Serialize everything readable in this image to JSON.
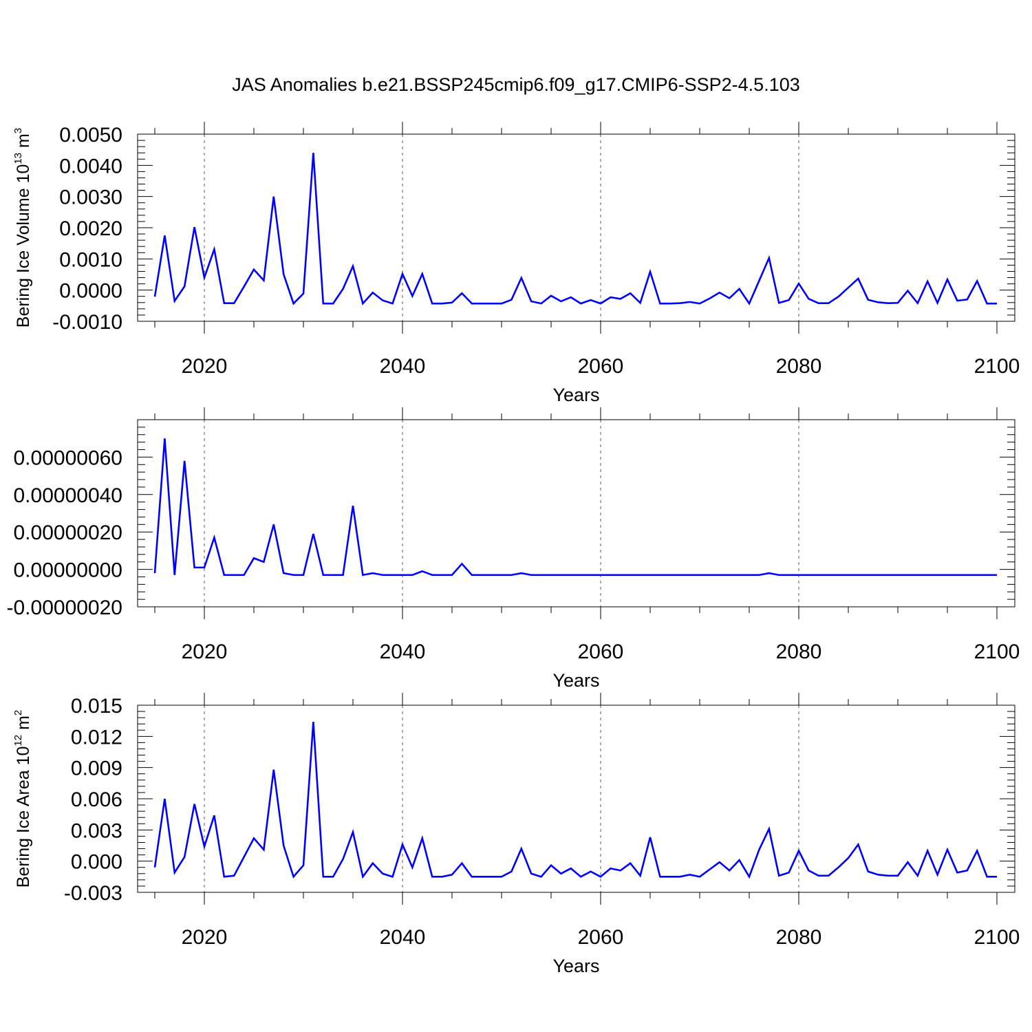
{
  "title": "JAS Anomalies b.e21.BSSP245cmip6.f09_g17.CMIP6-SSP2-4.5.103",
  "colors": {
    "line": "#0000ff",
    "axis": "#000000",
    "grid": "#555555"
  },
  "chart_data": [
    {
      "type": "line",
      "ylabel": {
        "text": "Bering Ice Volume 10",
        "sup": "13",
        "unit": " m",
        "unit_sup": "3"
      },
      "xlabel": "Years",
      "xlim": [
        2015,
        2100
      ],
      "ylim": [
        -0.001,
        0.005
      ],
      "x_ticks": [
        "2020",
        "2040",
        "2060",
        "2080",
        "2100"
      ],
      "y_ticks": [
        {
          "value": 0.005,
          "label": "0.0050"
        },
        {
          "value": 0.004,
          "label": "0.0040"
        },
        {
          "value": 0.003,
          "label": "0.0030"
        },
        {
          "value": 0.002,
          "label": "0.0020"
        },
        {
          "value": 0.001,
          "label": "0.0010"
        },
        {
          "value": 0.0,
          "label": "0.0000"
        },
        {
          "value": -0.001,
          "label": "-0.0010"
        }
      ],
      "grid": "vertical dashed at major ticks",
      "series": [
        {
          "x": [
            2015,
            2016,
            2017,
            2018,
            2019,
            2020,
            2021,
            2022,
            2023,
            2024,
            2025,
            2026,
            2027,
            2028,
            2029,
            2030,
            2031,
            2032,
            2033,
            2034,
            2035,
            2036,
            2037,
            2038,
            2039,
            2040,
            2041,
            2042,
            2043,
            2044,
            2045,
            2046,
            2047,
            2048,
            2049,
            2050,
            2051,
            2052,
            2053,
            2054,
            2055,
            2056,
            2057,
            2058,
            2059,
            2060,
            2061,
            2062,
            2063,
            2064,
            2065,
            2066,
            2067,
            2068,
            2069,
            2070,
            2071,
            2072,
            2073,
            2074,
            2075,
            2076,
            2077,
            2078,
            2079,
            2080,
            2081,
            2082,
            2083,
            2084,
            2085,
            2086,
            2087,
            2088,
            2089,
            2090,
            2091,
            2092,
            2093,
            2094,
            2095,
            2096,
            2097,
            2098,
            2099,
            2100
          ],
          "y": [
            -0.00021,
            0.00175,
            -0.00035,
            0.00012,
            0.00202,
            0.0004,
            0.00131,
            -0.00042,
            -0.00042,
            0.00011,
            0.00066,
            0.00031,
            0.003,
            0.00051,
            -0.00043,
            -0.00011,
            0.0044,
            -0.00043,
            -0.00043,
            4e-05,
            0.00077,
            -0.00043,
            -8e-05,
            -0.00033,
            -0.00043,
            0.00052,
            -0.00019,
            0.00052,
            -0.00043,
            -0.00043,
            -0.0004,
            -0.0001,
            -0.00043,
            -0.00043,
            -0.00043,
            -0.00043,
            -0.00031,
            0.00039,
            -0.00036,
            -0.00043,
            -0.00018,
            -0.00036,
            -0.00023,
            -0.00043,
            -0.00032,
            -0.00043,
            -0.00023,
            -0.00028,
            -0.0001,
            -0.00041,
            0.00059,
            -0.00043,
            -0.00043,
            -0.00042,
            -0.00038,
            -0.00043,
            -0.00027,
            -8e-05,
            -0.00026,
            4e-05,
            -0.00043,
            0.0003,
            0.00103,
            -0.00041,
            -0.00032,
            0.00021,
            -0.00028,
            -0.00042,
            -0.00042,
            -0.00021,
            8e-05,
            0.00037,
            -0.00031,
            -0.00039,
            -0.00042,
            -0.00041,
            -2e-05,
            -0.00042,
            0.00028,
            -0.00041,
            0.00034,
            -0.00034,
            -0.0003,
            0.00029,
            -0.00043,
            -0.00043
          ]
        }
      ]
    },
    {
      "type": "line",
      "ylabel": {
        "text": "",
        "sup": "",
        "unit": "",
        "unit_sup": ""
      },
      "xlabel": "Years",
      "xlim": [
        2015,
        2100
      ],
      "ylim": [
        -2e-07,
        8e-07
      ],
      "x_ticks": [
        "2020",
        "2040",
        "2060",
        "2080",
        "2100"
      ],
      "y_ticks": [
        {
          "value": 6e-07,
          "label": "0.00000060"
        },
        {
          "value": 4e-07,
          "label": "0.00000040"
        },
        {
          "value": 2e-07,
          "label": "0.00000020"
        },
        {
          "value": 0.0,
          "label": "0.00000000"
        },
        {
          "value": -2e-07,
          "label": "-0.00000020"
        }
      ],
      "grid": "vertical dashed at major ticks",
      "series": [
        {
          "x": [
            2015,
            2016,
            2017,
            2018,
            2019,
            2020,
            2021,
            2022,
            2023,
            2024,
            2025,
            2026,
            2027,
            2028,
            2029,
            2030,
            2031,
            2032,
            2033,
            2034,
            2035,
            2036,
            2037,
            2038,
            2039,
            2040,
            2041,
            2042,
            2043,
            2044,
            2045,
            2046,
            2047,
            2048,
            2049,
            2050,
            2051,
            2052,
            2053,
            2054,
            2055,
            2056,
            2057,
            2058,
            2059,
            2060,
            2061,
            2062,
            2063,
            2064,
            2065,
            2066,
            2067,
            2068,
            2069,
            2070,
            2071,
            2072,
            2073,
            2074,
            2075,
            2076,
            2077,
            2078,
            2079,
            2080,
            2081,
            2082,
            2083,
            2084,
            2085,
            2086,
            2087,
            2088,
            2089,
            2090,
            2091,
            2092,
            2093,
            2094,
            2095,
            2096,
            2097,
            2098,
            2099,
            2100
          ],
          "y": [
            -2e-08,
            7e-07,
            -3e-08,
            5.8e-07,
            1e-08,
            1e-08,
            1.7e-07,
            -3e-08,
            -3e-08,
            -3e-08,
            6e-08,
            4e-08,
            2.4e-07,
            -2e-08,
            -3e-08,
            -3e-08,
            1.9e-07,
            -3e-08,
            -3e-08,
            -3e-08,
            3.4e-07,
            -3e-08,
            -2e-08,
            -3e-08,
            -3e-08,
            -3e-08,
            -3e-08,
            -1e-08,
            -3e-08,
            -3e-08,
            -3e-08,
            3e-08,
            -3e-08,
            -3e-08,
            -3e-08,
            -3e-08,
            -3e-08,
            -2e-08,
            -3e-08,
            -3e-08,
            -3e-08,
            -3e-08,
            -3e-08,
            -3e-08,
            -3e-08,
            -3e-08,
            -3e-08,
            -3e-08,
            -3e-08,
            -3e-08,
            -3e-08,
            -3e-08,
            -3e-08,
            -3e-08,
            -3e-08,
            -3e-08,
            -3e-08,
            -3e-08,
            -3e-08,
            -3e-08,
            -3e-08,
            -3e-08,
            -2e-08,
            -3e-08,
            -3e-08,
            -3e-08,
            -3e-08,
            -3e-08,
            -3e-08,
            -3e-08,
            -3e-08,
            -3e-08,
            -3e-08,
            -3e-08,
            -3e-08,
            -3e-08,
            -3e-08,
            -3e-08,
            -3e-08,
            -3e-08,
            -3e-08,
            -3e-08,
            -3e-08,
            -3e-08,
            -3e-08,
            -3e-08
          ]
        }
      ]
    },
    {
      "type": "line",
      "ylabel": {
        "text": "Bering Ice Area 10",
        "sup": "12",
        "unit": " m",
        "unit_sup": "2"
      },
      "xlabel": "Years",
      "xlim": [
        2015,
        2100
      ],
      "ylim": [
        -0.003,
        0.015
      ],
      "x_ticks": [
        "2020",
        "2040",
        "2060",
        "2080",
        "2100"
      ],
      "y_ticks": [
        {
          "value": 0.015,
          "label": "0.015"
        },
        {
          "value": 0.012,
          "label": "0.012"
        },
        {
          "value": 0.009,
          "label": "0.009"
        },
        {
          "value": 0.006,
          "label": "0.006"
        },
        {
          "value": 0.003,
          "label": "0.003"
        },
        {
          "value": 0.0,
          "label": "0.000"
        },
        {
          "value": -0.003,
          "label": "-0.003"
        }
      ],
      "grid": "vertical dashed at major ticks",
      "series": [
        {
          "x": [
            2015,
            2016,
            2017,
            2018,
            2019,
            2020,
            2021,
            2022,
            2023,
            2024,
            2025,
            2026,
            2027,
            2028,
            2029,
            2030,
            2031,
            2032,
            2033,
            2034,
            2035,
            2036,
            2037,
            2038,
            2039,
            2040,
            2041,
            2042,
            2043,
            2044,
            2045,
            2046,
            2047,
            2048,
            2049,
            2050,
            2051,
            2052,
            2053,
            2054,
            2055,
            2056,
            2057,
            2058,
            2059,
            2060,
            2061,
            2062,
            2063,
            2064,
            2065,
            2066,
            2067,
            2068,
            2069,
            2070,
            2071,
            2072,
            2073,
            2074,
            2075,
            2076,
            2077,
            2078,
            2079,
            2080,
            2081,
            2082,
            2083,
            2084,
            2085,
            2086,
            2087,
            2088,
            2089,
            2090,
            2091,
            2092,
            2093,
            2094,
            2095,
            2096,
            2097,
            2098,
            2099,
            2100
          ],
          "y": [
            -0.0006,
            0.006,
            -0.0011,
            0.0004,
            0.0055,
            0.0014,
            0.0044,
            -0.0015,
            -0.0014,
            0.0004,
            0.0022,
            0.0011,
            0.0088,
            0.0015,
            -0.0015,
            -0.0004,
            0.0134,
            -0.0015,
            -0.0015,
            0.0002,
            0.0028,
            -0.0015,
            -0.0002,
            -0.0012,
            -0.0015,
            0.0016,
            -0.0006,
            0.0022,
            -0.0015,
            -0.0015,
            -0.0013,
            -0.0002,
            -0.0015,
            -0.0015,
            -0.0015,
            -0.0015,
            -0.001,
            0.0012,
            -0.0012,
            -0.0015,
            -0.0004,
            -0.0012,
            -0.0007,
            -0.0015,
            -0.001,
            -0.0015,
            -0.0007,
            -0.0009,
            -0.0002,
            -0.0014,
            0.0023,
            -0.0015,
            -0.0015,
            -0.0015,
            -0.0013,
            -0.0015,
            -0.0008,
            -0.0001,
            -0.0009,
            0.0001,
            -0.0015,
            0.0011,
            0.0031,
            -0.0014,
            -0.0011,
            0.001,
            -0.0009,
            -0.0014,
            -0.0014,
            -0.0006,
            0.0003,
            0.0016,
            -0.001,
            -0.0013,
            -0.0014,
            -0.0014,
            -0.0001,
            -0.0014,
            0.001,
            -0.0013,
            0.0011,
            -0.0011,
            -0.0009,
            0.001,
            -0.0015,
            -0.0015
          ]
        }
      ]
    }
  ]
}
